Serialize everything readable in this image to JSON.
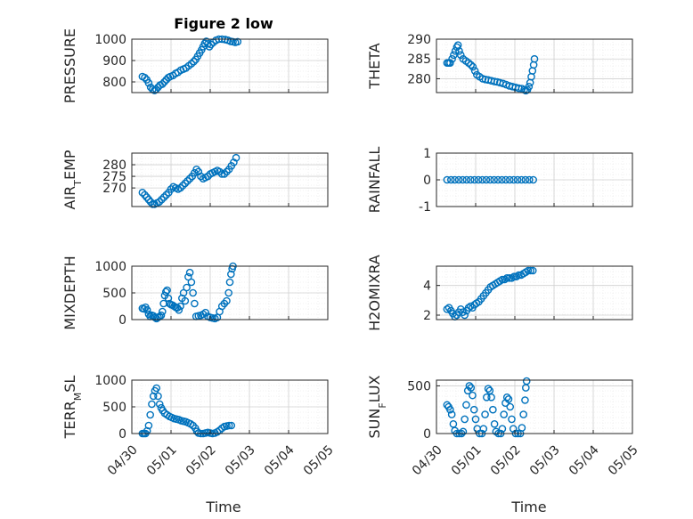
{
  "figure": {
    "title": "Figure 2 low"
  },
  "style": {
    "marker_color": "#0072BD",
    "axis_color": "#262626",
    "grid_color": "#d0d0d0"
  },
  "x_ticks": [
    "04/30",
    "05/01",
    "05/02",
    "05/03",
    "05/04",
    "05/05"
  ],
  "x_label": "Time",
  "chart_data": [
    {
      "id": "pressure",
      "type": "scatter",
      "ylabel": "PRESSURE",
      "title": "Figure 2 low",
      "ylim": [
        750,
        1000
      ],
      "yticks": [
        800,
        900,
        1000
      ],
      "show_xticks": false,
      "points": [
        [
          0.27,
          825
        ],
        [
          0.33,
          820
        ],
        [
          0.38,
          810
        ],
        [
          0.43,
          795
        ],
        [
          0.48,
          775
        ],
        [
          0.53,
          765
        ],
        [
          0.58,
          760
        ],
        [
          0.62,
          765
        ],
        [
          0.67,
          775
        ],
        [
          0.72,
          785
        ],
        [
          0.78,
          790
        ],
        [
          0.83,
          800
        ],
        [
          0.88,
          810
        ],
        [
          0.93,
          820
        ],
        [
          0.98,
          825
        ],
        [
          1.05,
          830
        ],
        [
          1.12,
          840
        ],
        [
          1.18,
          845
        ],
        [
          1.25,
          855
        ],
        [
          1.32,
          860
        ],
        [
          1.38,
          865
        ],
        [
          1.45,
          875
        ],
        [
          1.52,
          885
        ],
        [
          1.58,
          895
        ],
        [
          1.63,
          905
        ],
        [
          1.68,
          920
        ],
        [
          1.73,
          935
        ],
        [
          1.78,
          950
        ],
        [
          1.82,
          965
        ],
        [
          1.86,
          980
        ],
        [
          1.9,
          990
        ],
        [
          1.94,
          978
        ],
        [
          1.98,
          965
        ],
        [
          2.02,
          975
        ],
        [
          2.08,
          985
        ],
        [
          2.15,
          995
        ],
        [
          2.22,
          1000
        ],
        [
          2.3,
          1000
        ],
        [
          2.38,
          998
        ],
        [
          2.45,
          995
        ],
        [
          2.52,
          990
        ],
        [
          2.58,
          988
        ],
        [
          2.64,
          985
        ],
        [
          2.7,
          988
        ]
      ]
    },
    {
      "id": "theta",
      "type": "scatter",
      "ylabel": "THETA",
      "ylim": [
        276.5,
        290
      ],
      "yticks": [
        280,
        285,
        290
      ],
      "show_xticks": false,
      "points": [
        [
          0.27,
          284
        ],
        [
          0.31,
          284
        ],
        [
          0.35,
          284
        ],
        [
          0.4,
          285
        ],
        [
          0.44,
          286
        ],
        [
          0.48,
          287
        ],
        [
          0.52,
          288
        ],
        [
          0.55,
          288.5
        ],
        [
          0.58,
          287
        ],
        [
          0.62,
          286
        ],
        [
          0.68,
          285
        ],
        [
          0.75,
          284.5
        ],
        [
          0.82,
          284
        ],
        [
          0.88,
          283.5
        ],
        [
          0.93,
          283
        ],
        [
          0.98,
          282
        ],
        [
          1.03,
          281
        ],
        [
          1.1,
          280.5
        ],
        [
          1.18,
          280
        ],
        [
          1.25,
          279.8
        ],
        [
          1.32,
          279.7
        ],
        [
          1.4,
          279.5
        ],
        [
          1.48,
          279.3
        ],
        [
          1.55,
          279.2
        ],
        [
          1.62,
          279
        ],
        [
          1.7,
          278.8
        ],
        [
          1.78,
          278.5
        ],
        [
          1.86,
          278.2
        ],
        [
          1.94,
          278
        ],
        [
          2.02,
          277.8
        ],
        [
          2.1,
          277.6
        ],
        [
          2.18,
          277.5
        ],
        [
          2.24,
          277.2
        ],
        [
          2.28,
          277
        ],
        [
          2.32,
          277.2
        ],
        [
          2.36,
          278
        ],
        [
          2.39,
          279
        ],
        [
          2.42,
          280.5
        ],
        [
          2.45,
          282
        ],
        [
          2.48,
          283.5
        ],
        [
          2.5,
          285
        ]
      ]
    },
    {
      "id": "air_temp",
      "type": "scatter",
      "ylabel": "AIR_TEMP",
      "ylabel_main": "AIR",
      "ylabel_sub": "T",
      "ylabel_rest": "EMP",
      "ylim": [
        262,
        285
      ],
      "yticks": [
        270,
        275,
        280
      ],
      "show_xticks": false,
      "points": [
        [
          0.27,
          268
        ],
        [
          0.33,
          267
        ],
        [
          0.38,
          266
        ],
        [
          0.43,
          265
        ],
        [
          0.48,
          264
        ],
        [
          0.53,
          263
        ],
        [
          0.58,
          263
        ],
        [
          0.64,
          263.5
        ],
        [
          0.7,
          264
        ],
        [
          0.76,
          265
        ],
        [
          0.82,
          266
        ],
        [
          0.88,
          267
        ],
        [
          0.94,
          268
        ],
        [
          1.0,
          269.5
        ],
        [
          1.06,
          270.5
        ],
        [
          1.12,
          270
        ],
        [
          1.18,
          269.5
        ],
        [
          1.24,
          270
        ],
        [
          1.3,
          271
        ],
        [
          1.36,
          272
        ],
        [
          1.42,
          273
        ],
        [
          1.48,
          274
        ],
        [
          1.54,
          275
        ],
        [
          1.6,
          276.5
        ],
        [
          1.65,
          278
        ],
        [
          1.7,
          277
        ],
        [
          1.76,
          275
        ],
        [
          1.82,
          274
        ],
        [
          1.88,
          274.5
        ],
        [
          1.94,
          275
        ],
        [
          2.0,
          276
        ],
        [
          2.06,
          276.5
        ],
        [
          2.12,
          277
        ],
        [
          2.18,
          277.5
        ],
        [
          2.24,
          277
        ],
        [
          2.3,
          276
        ],
        [
          2.36,
          276
        ],
        [
          2.42,
          277
        ],
        [
          2.48,
          278
        ],
        [
          2.54,
          279.5
        ],
        [
          2.6,
          281
        ],
        [
          2.66,
          283
        ]
      ]
    },
    {
      "id": "rainfall",
      "type": "scatter",
      "ylabel": "RAINFALL",
      "ylim": [
        -1,
        1
      ],
      "yticks": [
        -1,
        0,
        1
      ],
      "show_xticks": false,
      "points": [
        [
          0.27,
          0
        ],
        [
          0.37,
          0
        ],
        [
          0.47,
          0
        ],
        [
          0.57,
          0
        ],
        [
          0.67,
          0
        ],
        [
          0.77,
          0
        ],
        [
          0.87,
          0
        ],
        [
          0.97,
          0
        ],
        [
          1.07,
          0
        ],
        [
          1.17,
          0
        ],
        [
          1.27,
          0
        ],
        [
          1.37,
          0
        ],
        [
          1.47,
          0
        ],
        [
          1.57,
          0
        ],
        [
          1.67,
          0
        ],
        [
          1.77,
          0
        ],
        [
          1.87,
          0
        ],
        [
          1.97,
          0
        ],
        [
          2.07,
          0
        ],
        [
          2.17,
          0
        ],
        [
          2.27,
          0
        ],
        [
          2.37,
          0
        ],
        [
          2.47,
          0
        ]
      ]
    },
    {
      "id": "mixdepth",
      "type": "scatter",
      "ylabel": "MIXDEPTH",
      "ylim": [
        0,
        1000
      ],
      "yticks": [
        0,
        500,
        1000
      ],
      "show_xticks": false,
      "points": [
        [
          0.27,
          210
        ],
        [
          0.31,
          200
        ],
        [
          0.35,
          230
        ],
        [
          0.39,
          180
        ],
        [
          0.43,
          100
        ],
        [
          0.47,
          60
        ],
        [
          0.51,
          80
        ],
        [
          0.55,
          70
        ],
        [
          0.59,
          40
        ],
        [
          0.63,
          20
        ],
        [
          0.67,
          40
        ],
        [
          0.71,
          60
        ],
        [
          0.75,
          80
        ],
        [
          0.78,
          150
        ],
        [
          0.81,
          300
        ],
        [
          0.84,
          450
        ],
        [
          0.87,
          520
        ],
        [
          0.9,
          550
        ],
        [
          0.93,
          400
        ],
        [
          0.96,
          300
        ],
        [
          1.0,
          280
        ],
        [
          1.04,
          270
        ],
        [
          1.08,
          250
        ],
        [
          1.12,
          230
        ],
        [
          1.16,
          220
        ],
        [
          1.2,
          180
        ],
        [
          1.24,
          250
        ],
        [
          1.28,
          400
        ],
        [
          1.32,
          500
        ],
        [
          1.36,
          350
        ],
        [
          1.4,
          600
        ],
        [
          1.44,
          800
        ],
        [
          1.48,
          880
        ],
        [
          1.52,
          700
        ],
        [
          1.56,
          500
        ],
        [
          1.6,
          300
        ],
        [
          1.64,
          60
        ],
        [
          1.7,
          70
        ],
        [
          1.76,
          80
        ],
        [
          1.82,
          100
        ],
        [
          1.88,
          130
        ],
        [
          1.94,
          60
        ],
        [
          2.0,
          40
        ],
        [
          2.06,
          30
        ],
        [
          2.12,
          20
        ],
        [
          2.18,
          40
        ],
        [
          2.24,
          150
        ],
        [
          2.3,
          250
        ],
        [
          2.36,
          300
        ],
        [
          2.42,
          350
        ],
        [
          2.47,
          500
        ],
        [
          2.5,
          700
        ],
        [
          2.53,
          850
        ],
        [
          2.56,
          950
        ],
        [
          2.58,
          1000
        ]
      ]
    },
    {
      "id": "h2omixra",
      "type": "scatter",
      "ylabel": "H2OMIXRA",
      "ylim": [
        1.7,
        5.3
      ],
      "yticks": [
        2,
        4
      ],
      "show_xticks": false,
      "points": [
        [
          0.27,
          2.4
        ],
        [
          0.32,
          2.5
        ],
        [
          0.37,
          2.3
        ],
        [
          0.42,
          2.1
        ],
        [
          0.47,
          1.9
        ],
        [
          0.52,
          2.0
        ],
        [
          0.57,
          2.2
        ],
        [
          0.62,
          2.4
        ],
        [
          0.67,
          2.2
        ],
        [
          0.72,
          2.0
        ],
        [
          0.77,
          2.3
        ],
        [
          0.82,
          2.5
        ],
        [
          0.87,
          2.6
        ],
        [
          0.92,
          2.5
        ],
        [
          0.97,
          2.7
        ],
        [
          1.02,
          2.8
        ],
        [
          1.08,
          2.9
        ],
        [
          1.14,
          3.1
        ],
        [
          1.2,
          3.3
        ],
        [
          1.26,
          3.5
        ],
        [
          1.32,
          3.7
        ],
        [
          1.38,
          3.9
        ],
        [
          1.44,
          4.0
        ],
        [
          1.5,
          4.1
        ],
        [
          1.56,
          4.2
        ],
        [
          1.62,
          4.3
        ],
        [
          1.68,
          4.4
        ],
        [
          1.74,
          4.4
        ],
        [
          1.8,
          4.5
        ],
        [
          1.86,
          4.5
        ],
        [
          1.92,
          4.5
        ],
        [
          1.98,
          4.6
        ],
        [
          2.04,
          4.6
        ],
        [
          2.1,
          4.7
        ],
        [
          2.16,
          4.7
        ],
        [
          2.22,
          4.8
        ],
        [
          2.28,
          4.9
        ],
        [
          2.34,
          5.0
        ],
        [
          2.4,
          5.0
        ],
        [
          2.46,
          5.0
        ]
      ]
    },
    {
      "id": "terr_msl",
      "type": "scatter",
      "ylabel": "TERR_MSL",
      "ylabel_main": "TERR",
      "ylabel_sub": "M",
      "ylabel_rest": "SL",
      "ylim": [
        0,
        1000
      ],
      "yticks": [
        0,
        500,
        1000
      ],
      "show_xticks": true,
      "points": [
        [
          0.27,
          0
        ],
        [
          0.31,
          0
        ],
        [
          0.35,
          0
        ],
        [
          0.39,
          50
        ],
        [
          0.43,
          150
        ],
        [
          0.47,
          350
        ],
        [
          0.51,
          550
        ],
        [
          0.55,
          700
        ],
        [
          0.59,
          800
        ],
        [
          0.63,
          850
        ],
        [
          0.67,
          700
        ],
        [
          0.71,
          550
        ],
        [
          0.75,
          480
        ],
        [
          0.79,
          430
        ],
        [
          0.84,
          380
        ],
        [
          0.9,
          350
        ],
        [
          0.96,
          320
        ],
        [
          1.02,
          300
        ],
        [
          1.08,
          280
        ],
        [
          1.14,
          270
        ],
        [
          1.2,
          260
        ],
        [
          1.26,
          240
        ],
        [
          1.32,
          230
        ],
        [
          1.38,
          220
        ],
        [
          1.44,
          200
        ],
        [
          1.5,
          180
        ],
        [
          1.56,
          150
        ],
        [
          1.62,
          100
        ],
        [
          1.66,
          40
        ],
        [
          1.7,
          10
        ],
        [
          1.76,
          0
        ],
        [
          1.82,
          0
        ],
        [
          1.88,
          10
        ],
        [
          1.94,
          20
        ],
        [
          2.0,
          10
        ],
        [
          2.06,
          0
        ],
        [
          2.12,
          10
        ],
        [
          2.18,
          30
        ],
        [
          2.24,
          60
        ],
        [
          2.3,
          100
        ],
        [
          2.36,
          130
        ],
        [
          2.42,
          140
        ],
        [
          2.48,
          150
        ],
        [
          2.54,
          150
        ]
      ]
    },
    {
      "id": "sun_flux",
      "type": "scatter",
      "ylabel": "SUN_FLUX",
      "ylabel_main": "SUN",
      "ylabel_sub": "F",
      "ylabel_rest": "LUX",
      "ylim": [
        0,
        560
      ],
      "yticks": [
        0,
        500
      ],
      "show_xticks": true,
      "points": [
        [
          0.27,
          300
        ],
        [
          0.31,
          280
        ],
        [
          0.35,
          250
        ],
        [
          0.39,
          200
        ],
        [
          0.43,
          100
        ],
        [
          0.47,
          30
        ],
        [
          0.52,
          0
        ],
        [
          0.58,
          0
        ],
        [
          0.64,
          0
        ],
        [
          0.68,
          20
        ],
        [
          0.72,
          150
        ],
        [
          0.76,
          300
        ],
        [
          0.8,
          450
        ],
        [
          0.84,
          500
        ],
        [
          0.88,
          480
        ],
        [
          0.92,
          400
        ],
        [
          0.96,
          250
        ],
        [
          1.0,
          150
        ],
        [
          1.04,
          50
        ],
        [
          1.1,
          0
        ],
        [
          1.16,
          0
        ],
        [
          1.2,
          50
        ],
        [
          1.24,
          200
        ],
        [
          1.28,
          380
        ],
        [
          1.32,
          470
        ],
        [
          1.36,
          450
        ],
        [
          1.4,
          380
        ],
        [
          1.44,
          250
        ],
        [
          1.48,
          100
        ],
        [
          1.52,
          20
        ],
        [
          1.58,
          0
        ],
        [
          1.64,
          0
        ],
        [
          1.68,
          50
        ],
        [
          1.72,
          200
        ],
        [
          1.76,
          320
        ],
        [
          1.8,
          380
        ],
        [
          1.84,
          360
        ],
        [
          1.88,
          280
        ],
        [
          1.92,
          150
        ],
        [
          1.96,
          50
        ],
        [
          2.02,
          0
        ],
        [
          2.08,
          0
        ],
        [
          2.14,
          0
        ],
        [
          2.18,
          60
        ],
        [
          2.22,
          200
        ],
        [
          2.26,
          350
        ],
        [
          2.28,
          480
        ],
        [
          2.3,
          550
        ]
      ]
    }
  ]
}
